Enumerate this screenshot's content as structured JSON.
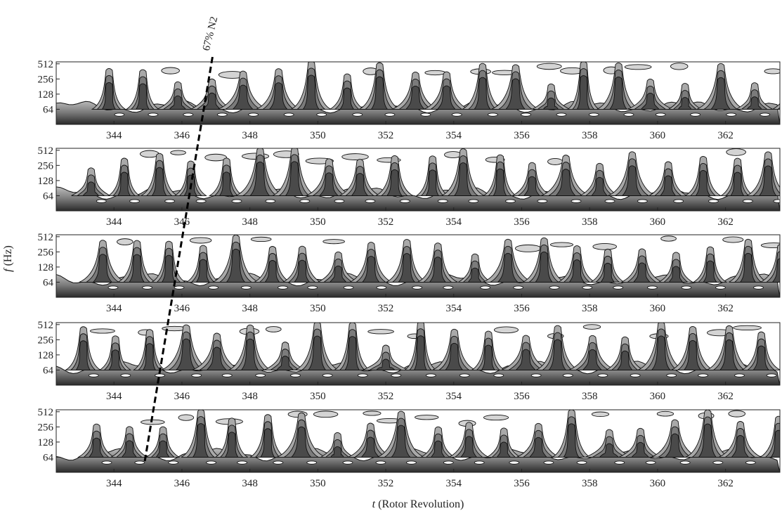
{
  "chart_data": {
    "type": "heatmap",
    "panels": 5,
    "x_ticks": [
      "344",
      "346",
      "348",
      "350",
      "352",
      "354",
      "356",
      "358",
      "360",
      "362"
    ],
    "x_tick_values": [
      344,
      346,
      348,
      350,
      352,
      354,
      356,
      358,
      360,
      362
    ],
    "xlim": [
      342.3,
      363.6
    ],
    "y_ticks": [
      "64",
      "128",
      "256",
      "512"
    ],
    "y_tick_values": [
      64,
      128,
      256,
      512
    ],
    "ylim": [
      32,
      560
    ],
    "y_scale": "log2",
    "xlabel_italic": "t",
    "xlabel_rest": " (Rotor Revolution)",
    "ylabel_italic": "f",
    "ylabel_rest": " (Hz)",
    "annotation": "67% N2",
    "annotation_line": [
      {
        "panel": 1,
        "x": 346.9,
        "f": 700
      },
      {
        "panel": 5,
        "x": 344.9,
        "f": 50
      }
    ],
    "grid": false,
    "legend": "none",
    "colors": {
      "low": "#ffffff",
      "mid": "#9a9a9a",
      "high": "#222222",
      "contour": "#111111"
    }
  }
}
